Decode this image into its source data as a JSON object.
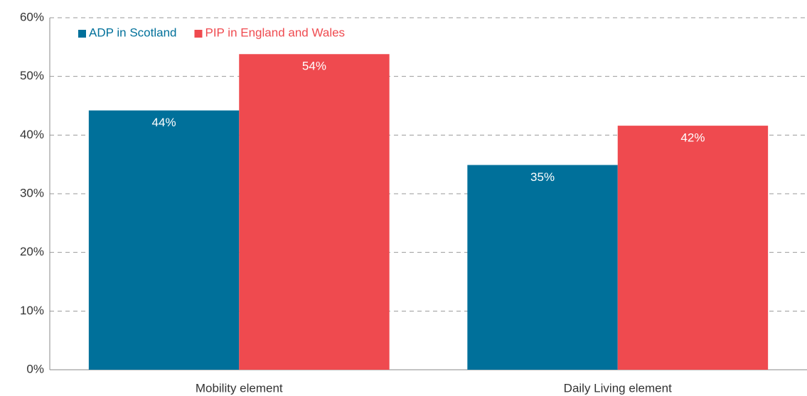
{
  "chart_data": {
    "type": "bar",
    "categories": [
      "Mobility element",
      "Daily Living element"
    ],
    "series": [
      {
        "name": "ADP in Scotland",
        "color": "#00709a",
        "values": [
          44.2,
          34.9
        ],
        "value_labels": [
          "44%",
          "35%"
        ]
      },
      {
        "name": "PIP in England and Wales",
        "color": "#ef4a4f",
        "values": [
          53.8,
          41.6
        ],
        "value_labels": [
          "54%",
          "42%"
        ]
      }
    ],
    "ylim": [
      0,
      60
    ],
    "yticks": [
      {
        "value": 0,
        "label": "0%"
      },
      {
        "value": 10,
        "label": "10%"
      },
      {
        "value": 20,
        "label": "20%"
      },
      {
        "value": 30,
        "label": "30%"
      },
      {
        "value": 40,
        "label": "40%"
      },
      {
        "value": 50,
        "label": "50%"
      },
      {
        "value": 60,
        "label": "60%"
      }
    ],
    "grid": true,
    "legend": "top-left"
  }
}
